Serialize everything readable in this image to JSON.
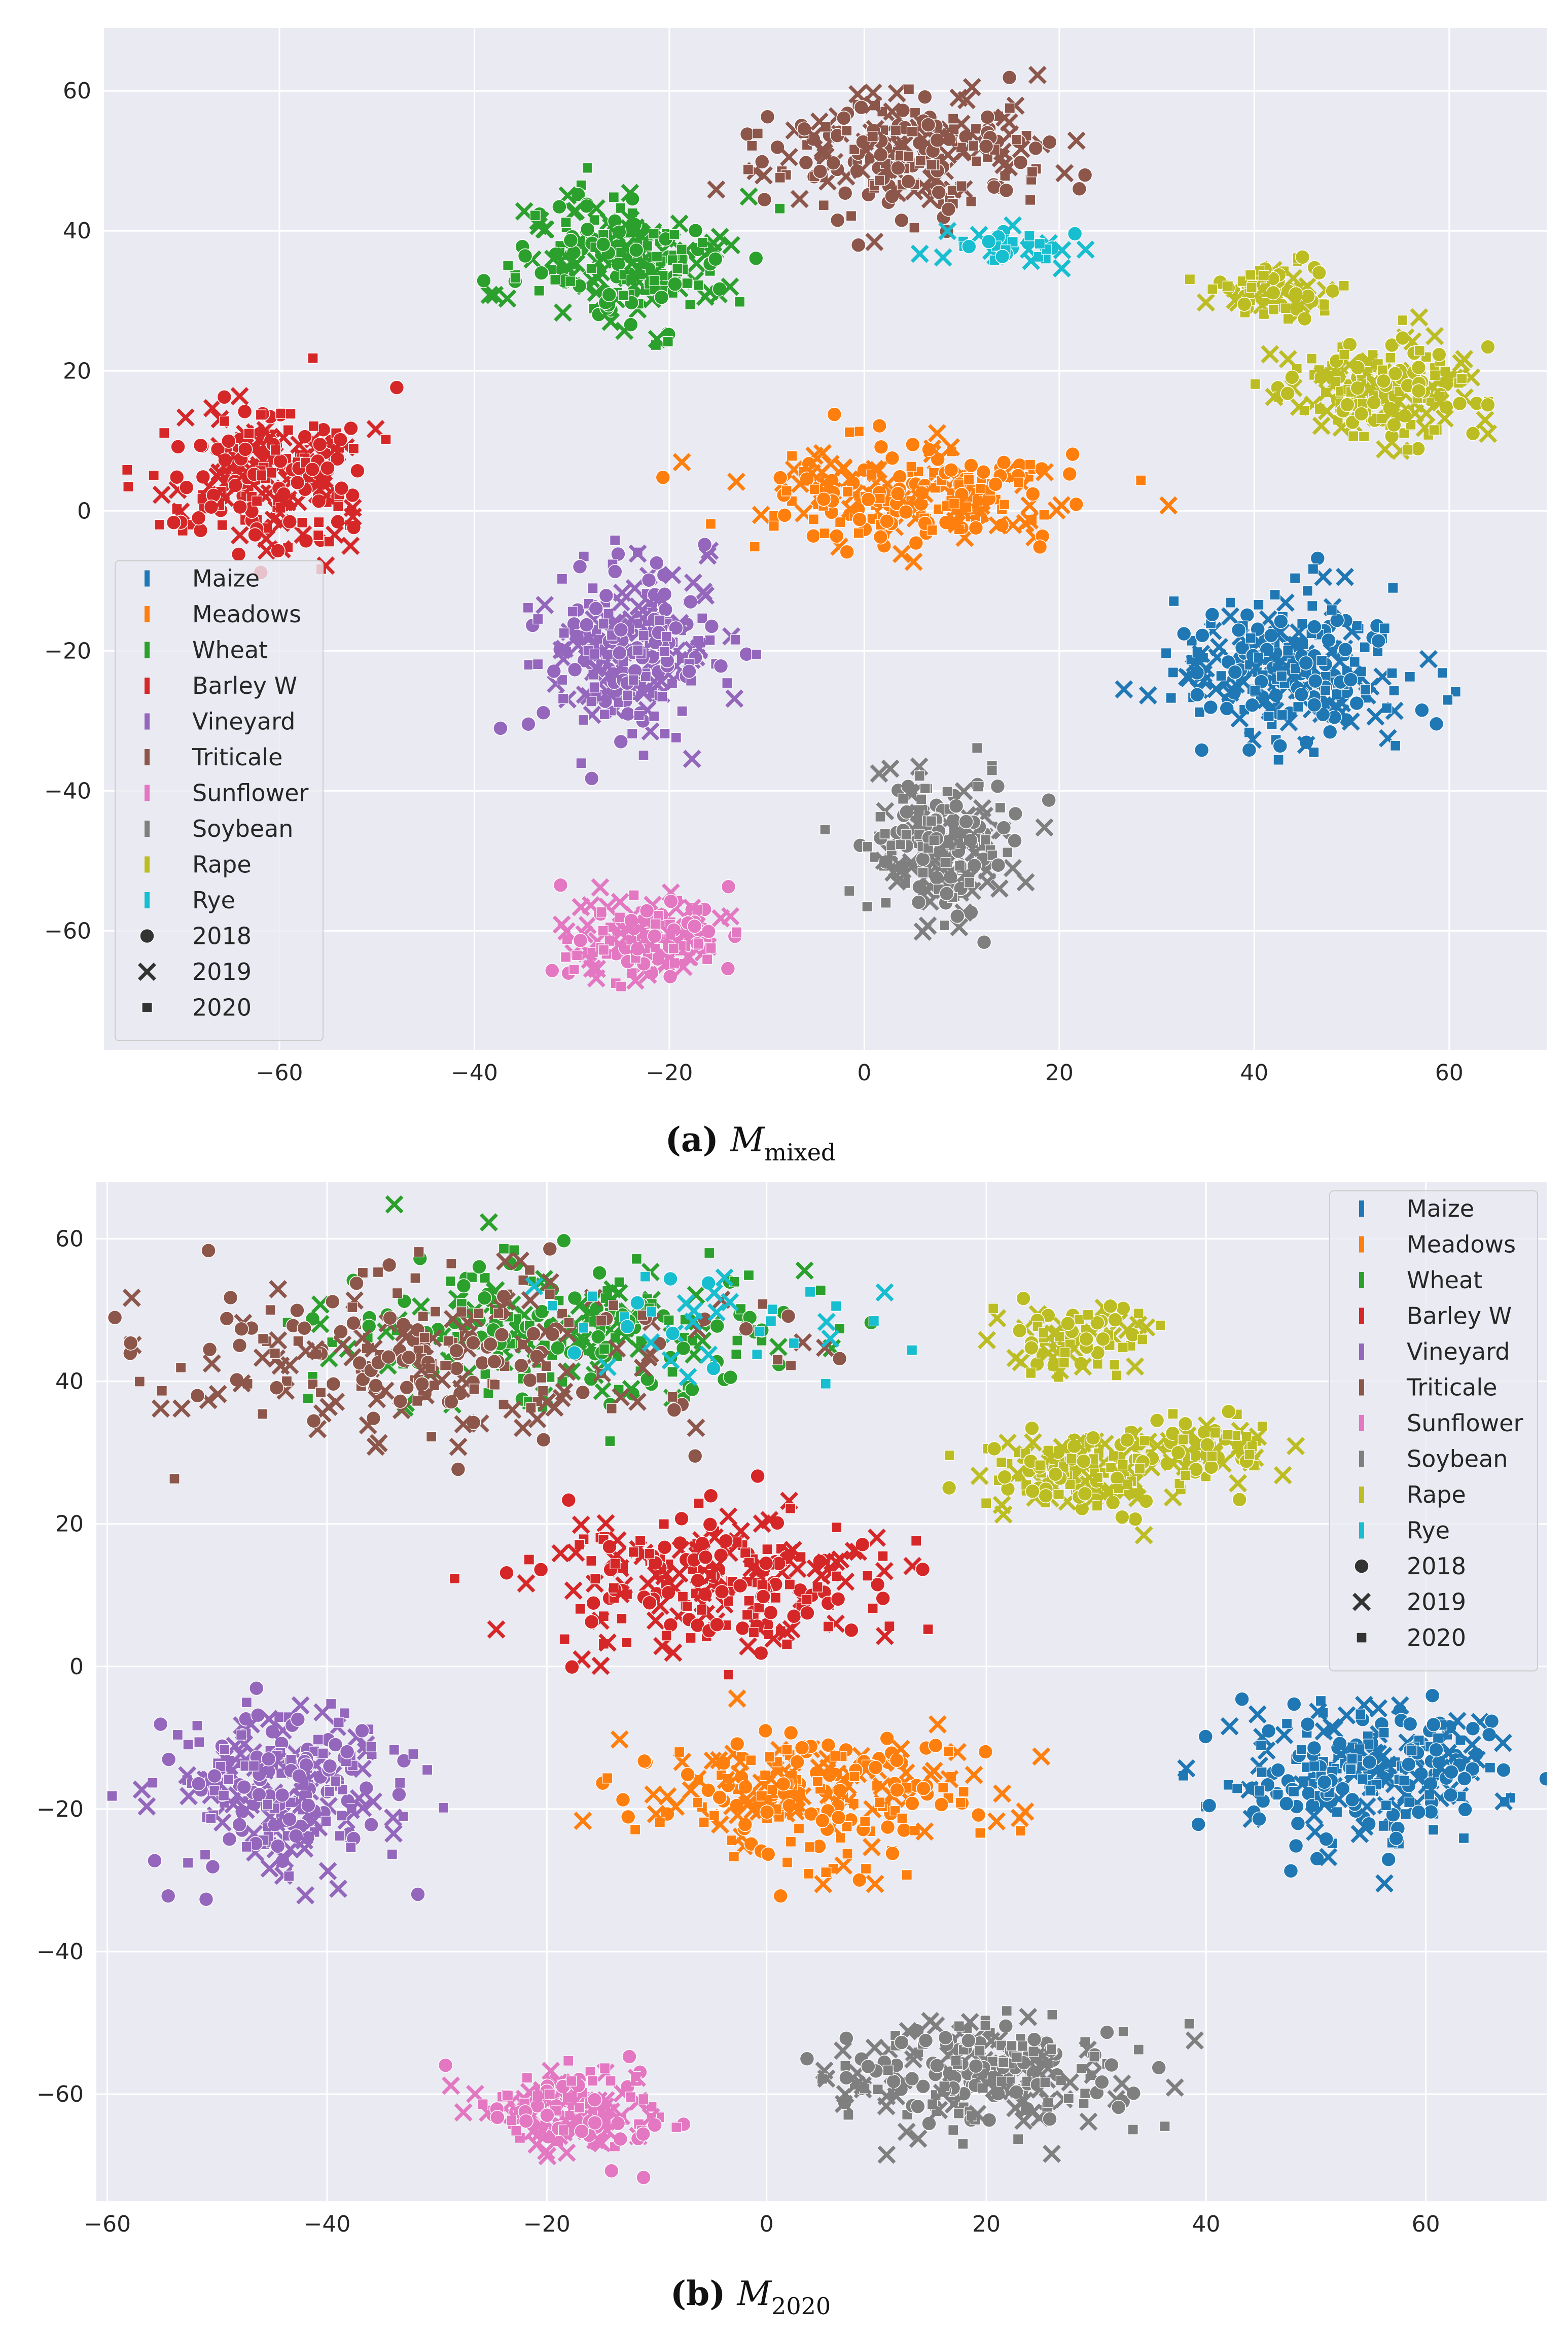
{
  "chart_data": [
    {
      "type": "scatter",
      "caption_label": "(a)",
      "caption_symbol": "M",
      "caption_subscript": "mixed",
      "xlim": [
        -78,
        70
      ],
      "ylim": [
        -77,
        69
      ],
      "xticks": [
        -60,
        -40,
        -20,
        0,
        20,
        40,
        60
      ],
      "yticks": [
        -60,
        -40,
        -20,
        0,
        20,
        40,
        60
      ],
      "xtick_labels": [
        "−60",
        "−40",
        "−20",
        "0",
        "20",
        "40",
        "60"
      ],
      "ytick_labels": [
        "−60",
        "−40",
        "−20",
        "0",
        "20",
        "40",
        "60"
      ],
      "grid": true,
      "legend_position": "lower-left",
      "clusters": [
        {
          "class": "Maize",
          "cx": 44,
          "cy": -22,
          "sx": 8,
          "sy": 7,
          "n": 260
        },
        {
          "class": "Meadows",
          "cx": 5,
          "cy": 2,
          "sx": 11,
          "sy": 4.5,
          "n": 240
        },
        {
          "class": "Wheat",
          "cx": -25,
          "cy": 36,
          "sx": 7,
          "sy": 6,
          "n": 240
        },
        {
          "class": "Barley W",
          "cx": -61,
          "cy": 5,
          "sx": 7,
          "sy": 7,
          "n": 260
        },
        {
          "class": "Vineyard",
          "cx": -24,
          "cy": -20,
          "sx": 6,
          "sy": 8,
          "n": 260
        },
        {
          "class": "Triticale",
          "cx": 4,
          "cy": 51,
          "sx": 10,
          "sy": 6,
          "n": 240
        },
        {
          "class": "Sunflower",
          "cx": -22,
          "cy": -61,
          "sx": 6,
          "sy": 3.5,
          "n": 180
        },
        {
          "class": "Soybean",
          "cx": 8,
          "cy": -48,
          "sx": 5,
          "sy": 7,
          "n": 220
        },
        {
          "class": "Rape",
          "cx": 53,
          "cy": 17,
          "sx": 7,
          "sy": 4.5,
          "n": 220
        },
        {
          "class": "Rape",
          "cx": 42,
          "cy": 31,
          "sx": 4,
          "sy": 3,
          "n": 80
        },
        {
          "class": "Rye",
          "cx": 15,
          "cy": 38,
          "sx": 4,
          "sy": 2,
          "n": 40
        }
      ]
    },
    {
      "type": "scatter",
      "caption_label": "(b)",
      "caption_symbol": "M",
      "caption_subscript": "2020",
      "xlim": [
        -61,
        71
      ],
      "ylim": [
        -75,
        68
      ],
      "xticks": [
        -60,
        -40,
        -20,
        0,
        20,
        40,
        60
      ],
      "yticks": [
        -60,
        -40,
        -20,
        0,
        20,
        40,
        60
      ],
      "xtick_labels": [
        "−60",
        "−40",
        "−20",
        "0",
        "20",
        "40",
        "60"
      ],
      "ytick_labels": [
        "−60",
        "−40",
        "−20",
        "0",
        "20",
        "40",
        "60"
      ],
      "grid": true,
      "legend_position": "upper-right",
      "clusters": [
        {
          "class": "Maize",
          "cx": 55,
          "cy": -15,
          "sx": 8,
          "sy": 6,
          "n": 260
        },
        {
          "class": "Meadows",
          "cx": 4,
          "cy": -18,
          "sx": 10,
          "sy": 6,
          "n": 260
        },
        {
          "class": "Wheat",
          "cx": -18,
          "cy": 47,
          "sx": 14,
          "sy": 7,
          "n": 240
        },
        {
          "class": "Barley W",
          "cx": -5,
          "cy": 12,
          "sx": 10,
          "sy": 6,
          "n": 260
        },
        {
          "class": "Vineyard",
          "cx": -44,
          "cy": -17,
          "sx": 7,
          "sy": 8,
          "n": 260
        },
        {
          "class": "Triticale",
          "cx": -30,
          "cy": 44,
          "sx": 18,
          "sy": 8,
          "n": 260
        },
        {
          "class": "Sunflower",
          "cx": -18,
          "cy": -62,
          "sx": 6,
          "sy": 4,
          "n": 180
        },
        {
          "class": "Soybean",
          "cx": 20,
          "cy": -57,
          "sx": 9,
          "sy": 5,
          "n": 260
        },
        {
          "class": "Rape",
          "cx": 28,
          "cy": 27,
          "sx": 5,
          "sy": 4,
          "n": 150
        },
        {
          "class": "Rape",
          "cx": 40,
          "cy": 30,
          "sx": 4,
          "sy": 3,
          "n": 90
        },
        {
          "class": "Rape",
          "cx": 28,
          "cy": 46,
          "sx": 5,
          "sy": 3,
          "n": 80
        },
        {
          "class": "Rye",
          "cx": -5,
          "cy": 48,
          "sx": 12,
          "sy": 6,
          "n": 40
        }
      ]
    }
  ],
  "legend": {
    "classes": [
      {
        "label": "Maize",
        "color": "#1f77b4"
      },
      {
        "label": "Meadows",
        "color": "#ff7f0e"
      },
      {
        "label": "Wheat",
        "color": "#2ca02c"
      },
      {
        "label": "Barley W",
        "color": "#d62728"
      },
      {
        "label": "Vineyard",
        "color": "#9467bd"
      },
      {
        "label": "Triticale",
        "color": "#8c564b"
      },
      {
        "label": "Sunflower",
        "color": "#e377c2"
      },
      {
        "label": "Soybean",
        "color": "#7f7f7f"
      },
      {
        "label": "Rape",
        "color": "#bcbd22"
      },
      {
        "label": "Rye",
        "color": "#17becf"
      }
    ],
    "years": [
      {
        "label": "2018",
        "marker": "circle"
      },
      {
        "label": "2019",
        "marker": "x"
      },
      {
        "label": "2020",
        "marker": "square"
      }
    ]
  },
  "style": {
    "panel_background": "#eaeaf2",
    "grid_color": "#ffffff",
    "tick_text_color": "#262626"
  }
}
